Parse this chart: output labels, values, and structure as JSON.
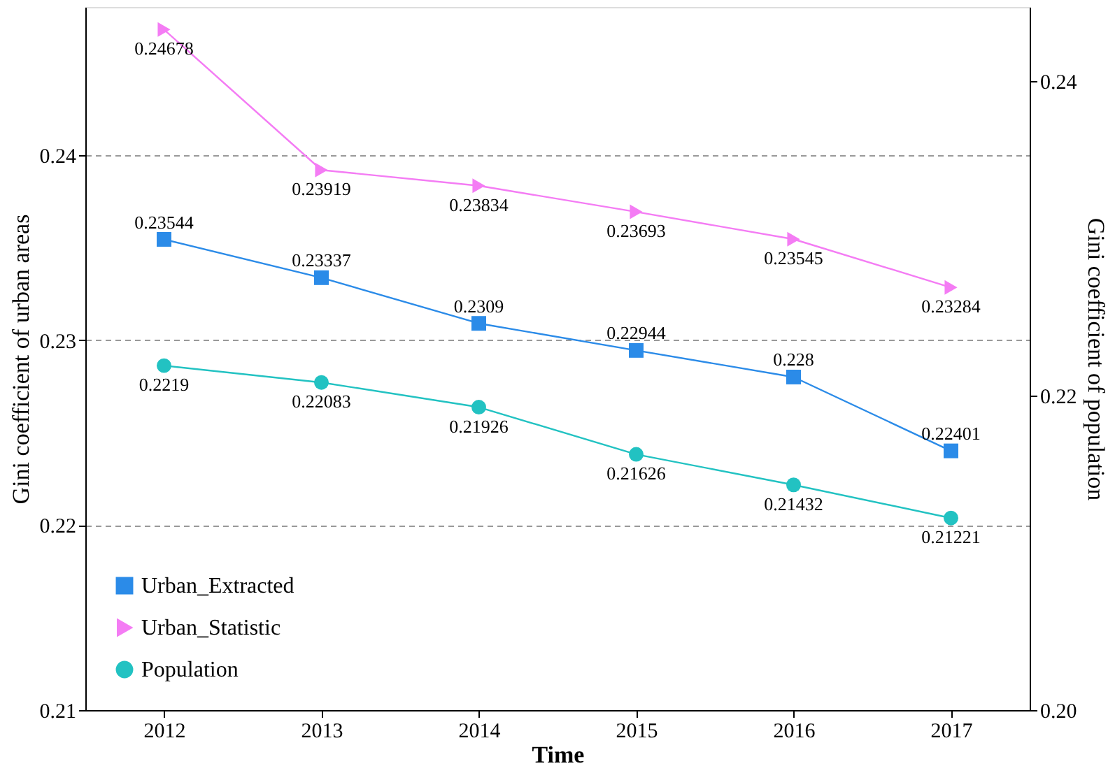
{
  "chart_data": {
    "type": "line",
    "xlabel": "Time",
    "ylabel": "Gini coefficient of urban areas",
    "y2label": "Gini coefficient of population",
    "categories": [
      "2012",
      "2013",
      "2014",
      "2015",
      "2016",
      "2017"
    ],
    "series": [
      {
        "name": "Urban_Extracted",
        "color": "#2b8be8",
        "marker": "square",
        "values": [
          0.23544,
          0.23337,
          0.2309,
          0.22944,
          0.228,
          0.22401
        ]
      },
      {
        "name": "Urban_Statistic",
        "color": "#f47cf4",
        "marker": "triangle",
        "values": [
          0.24678,
          0.23919,
          0.23834,
          0.23693,
          0.23545,
          0.23284
        ]
      },
      {
        "name": "Population",
        "color": "#22c2c2",
        "marker": "circle",
        "axis": "y2",
        "values": [
          0.2219,
          0.22083,
          0.21926,
          0.21626,
          0.21432,
          0.21221
        ]
      }
    ],
    "ylim": [
      0.21,
      0.248
    ],
    "yticks": [
      {
        "value": 0.21,
        "label": "0.21"
      },
      {
        "value": 0.22,
        "label": "0.22"
      },
      {
        "value": 0.23,
        "label": "0.23"
      },
      {
        "value": 0.24,
        "label": "0.24"
      }
    ],
    "y2lim": [
      0.2,
      0.2447
    ],
    "y2ticks": [
      {
        "value": 0.2,
        "label": "0.20"
      },
      {
        "value": 0.22,
        "label": "0.22"
      },
      {
        "value": 0.24,
        "label": "0.24"
      }
    ],
    "data_labels": true,
    "grid": "y",
    "legend": "bottom left",
    "line_style": "solid"
  }
}
